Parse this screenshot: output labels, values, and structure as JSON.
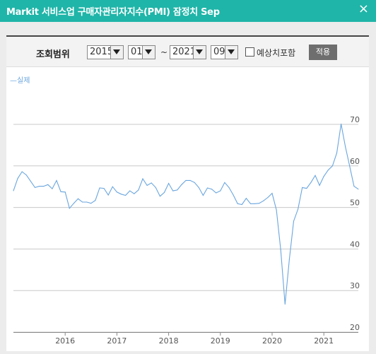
{
  "window": {
    "title": "Markit 서비스업 구매자관리자지수(PMI) 잠정치 Sep",
    "close_symbol": "×"
  },
  "controls": {
    "range_label": "조회범위",
    "start_year": "2015",
    "start_month": "01",
    "separator": "~",
    "end_year": "2021",
    "end_month": "09",
    "include_forecast_label": "예상치포함",
    "include_forecast_checked": false,
    "apply_label": "적용"
  },
  "chart_data": {
    "type": "line",
    "series": [
      {
        "name": "실제",
        "color": "#6aa6de",
        "x": [
          "2015-01",
          "2015-02",
          "2015-03",
          "2015-04",
          "2015-05",
          "2015-06",
          "2015-07",
          "2015-08",
          "2015-09",
          "2015-10",
          "2015-11",
          "2015-12",
          "2016-01",
          "2016-02",
          "2016-03",
          "2016-04",
          "2016-05",
          "2016-06",
          "2016-07",
          "2016-08",
          "2016-09",
          "2016-10",
          "2016-11",
          "2016-12",
          "2017-01",
          "2017-02",
          "2017-03",
          "2017-04",
          "2017-05",
          "2017-06",
          "2017-07",
          "2017-08",
          "2017-09",
          "2017-10",
          "2017-11",
          "2017-12",
          "2018-01",
          "2018-02",
          "2018-03",
          "2018-04",
          "2018-05",
          "2018-06",
          "2018-07",
          "2018-08",
          "2018-09",
          "2018-10",
          "2018-11",
          "2018-12",
          "2019-01",
          "2019-02",
          "2019-03",
          "2019-04",
          "2019-05",
          "2019-06",
          "2019-07",
          "2019-08",
          "2019-09",
          "2019-10",
          "2019-11",
          "2019-12",
          "2020-01",
          "2020-02",
          "2020-03",
          "2020-04",
          "2020-05",
          "2020-06",
          "2020-07",
          "2020-08",
          "2020-09",
          "2020-10",
          "2020-11",
          "2020-12",
          "2021-01",
          "2021-02",
          "2021-03",
          "2021-04",
          "2021-05",
          "2021-06",
          "2021-07",
          "2021-08",
          "2021-09"
        ],
        "values": [
          54.0,
          57.0,
          58.6,
          57.8,
          56.3,
          54.8,
          55.1,
          55.1,
          55.5,
          54.5,
          56.5,
          53.8,
          53.7,
          49.8,
          51.0,
          52.1,
          51.3,
          51.3,
          51.0,
          51.7,
          54.7,
          54.6,
          53.0,
          55.0,
          53.7,
          53.2,
          52.9,
          54.0,
          53.3,
          54.2,
          56.9,
          55.3,
          55.9,
          54.8,
          52.7,
          53.6,
          55.8,
          54.0,
          54.2,
          55.5,
          56.5,
          56.5,
          56.0,
          54.8,
          52.9,
          54.7,
          54.4,
          53.5,
          54.0,
          56.0,
          54.8,
          53.0,
          50.9,
          50.7,
          52.2,
          50.9,
          50.9,
          51.0,
          51.6,
          52.4,
          53.4,
          49.4,
          39.8,
          26.7,
          37.5,
          46.7,
          49.6,
          54.8,
          54.6,
          56.0,
          57.7,
          55.3,
          57.5,
          59.0,
          60.0,
          63.1,
          70.1,
          64.6,
          59.9,
          55.1,
          54.4
        ],
        "label_value": 70.1
      }
    ],
    "x_tick_labels": [
      "2016",
      "2017",
      "2018",
      "2019",
      "2020",
      "2021"
    ],
    "y_tick_labels": [
      "20",
      "30",
      "40",
      "50",
      "60",
      "70"
    ],
    "ylim": [
      20,
      75
    ],
    "grid": "horizontal",
    "legend_position": "top-left"
  }
}
